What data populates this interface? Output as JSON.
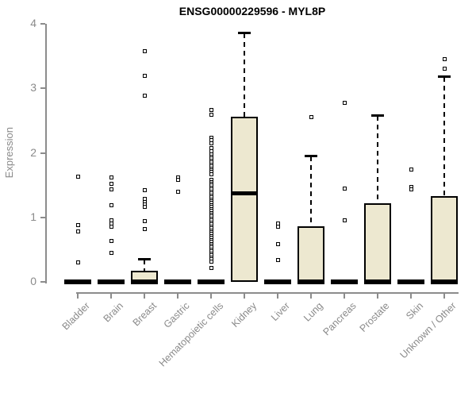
{
  "title": "ENSG00000229596 - MYL8P",
  "ylabel": "Expression",
  "colors": {
    "box_fill": "#EDE8D0",
    "box_border": "#000000",
    "axis": "#8c8c8c",
    "axis_text": "#8a8a8a",
    "title_text": "#000000",
    "background": "#ffffff"
  },
  "chart_data": {
    "type": "boxplot",
    "title": "ENSG00000229596 - MYL8P",
    "xlabel": "",
    "ylabel": "Expression",
    "ylim": [
      0,
      4
    ],
    "yticks": [
      "0",
      "1",
      "2",
      "3",
      "4"
    ],
    "grid": false,
    "legend": false,
    "categories": [
      "Bladder",
      "Brain",
      "Breast",
      "Gastric",
      "Hematopoietic cells",
      "Kidney",
      "Liver",
      "Lung",
      "Pancreas",
      "Prostate",
      "Skin",
      "Unknown / Other"
    ],
    "series": [
      {
        "name": "Bladder",
        "q1": 0,
        "median": 0,
        "q3": 0,
        "whisker_low": 0,
        "whisker_high": 0,
        "outliers": [
          1.63,
          0.88,
          0.78,
          0.3
        ]
      },
      {
        "name": "Brain",
        "q1": 0,
        "median": 0,
        "q3": 0,
        "whisker_low": 0,
        "whisker_high": 0,
        "outliers": [
          1.62,
          1.52,
          1.43,
          1.19,
          0.95,
          0.9,
          0.85,
          0.64,
          0.45
        ]
      },
      {
        "name": "Breast",
        "q1": 0,
        "median": 0,
        "q3": 0.17,
        "whisker_low": 0,
        "whisker_high": 0.35,
        "outliers": [
          3.57,
          3.2,
          2.89,
          1.42,
          1.29,
          1.24,
          1.2,
          1.16,
          0.94,
          0.82
        ]
      },
      {
        "name": "Gastric",
        "q1": 0,
        "median": 0,
        "q3": 0,
        "whisker_low": 0,
        "whisker_high": 0,
        "outliers": [
          1.62,
          1.58,
          1.4
        ]
      },
      {
        "name": "Hematopoietic cells",
        "q1": 0,
        "median": 0,
        "q3": 0,
        "whisker_low": 0,
        "whisker_high": 0,
        "outliers": [
          2.66,
          2.59,
          2.24,
          2.2,
          2.15,
          2.08,
          2.03,
          1.97,
          1.94,
          1.91,
          1.88,
          1.85,
          1.82,
          1.79,
          1.76,
          1.73,
          1.7,
          1.67,
          1.58,
          1.55,
          1.52,
          1.49,
          1.46,
          1.43,
          1.4,
          1.37,
          1.34,
          1.31,
          1.28,
          1.25,
          1.22,
          1.19,
          1.16,
          1.13,
          1.1,
          1.07,
          1.04,
          1.01,
          0.98,
          0.95,
          0.92,
          0.89,
          0.86,
          0.83,
          0.8,
          0.77,
          0.74,
          0.71,
          0.68,
          0.65,
          0.62,
          0.59,
          0.56,
          0.53,
          0.5,
          0.47,
          0.44,
          0.41,
          0.38,
          0.35,
          0.32,
          0.21
        ]
      },
      {
        "name": "Kidney",
        "q1": 0,
        "median": 1.38,
        "q3": 2.56,
        "whisker_low": 0,
        "whisker_high": 3.85,
        "outliers": []
      },
      {
        "name": "Liver",
        "q1": 0,
        "median": 0,
        "q3": 0,
        "whisker_low": 0,
        "whisker_high": 0,
        "outliers": [
          0.91,
          0.85,
          0.59,
          0.34
        ]
      },
      {
        "name": "Lung",
        "q1": 0,
        "median": 0,
        "q3": 0.86,
        "whisker_low": 0,
        "whisker_high": 1.95,
        "outliers": [
          2.55
        ]
      },
      {
        "name": "Pancreas",
        "q1": 0,
        "median": 0,
        "q3": 0,
        "whisker_low": 0,
        "whisker_high": 0,
        "outliers": [
          2.78,
          1.45,
          0.95
        ]
      },
      {
        "name": "Prostate",
        "q1": 0,
        "median": 0,
        "q3": 1.22,
        "whisker_low": 0,
        "whisker_high": 2.57,
        "outliers": []
      },
      {
        "name": "Skin",
        "q1": 0,
        "median": 0,
        "q3": 0,
        "whisker_low": 0,
        "whisker_high": 0,
        "outliers": [
          1.74,
          1.47,
          1.43
        ]
      },
      {
        "name": "Unknown / Other",
        "q1": 0,
        "median": 0,
        "q3": 1.33,
        "whisker_low": 0,
        "whisker_high": 3.17,
        "outliers": [
          3.45,
          3.3
        ]
      }
    ]
  }
}
